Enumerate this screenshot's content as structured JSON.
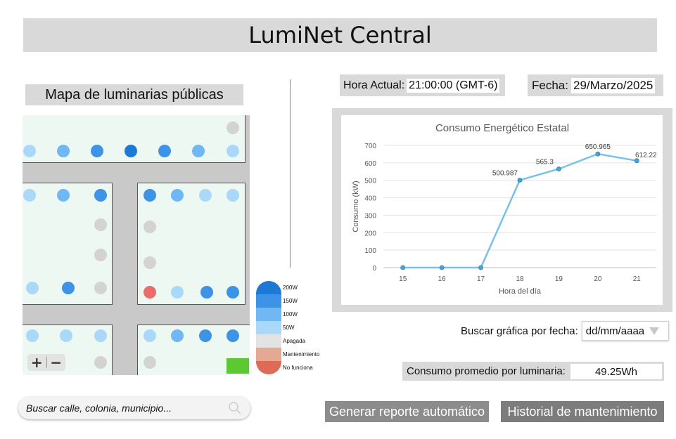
{
  "app": {
    "title": "LumiNet Central"
  },
  "map": {
    "title": "Mapa de luminarias públicas",
    "zoom_in": "+",
    "zoom_out": "−",
    "search_placeholder": "Buscar calle, colonia, municipio..."
  },
  "legend": [
    {
      "label": "200W",
      "color": "#1c79d6"
    },
    {
      "label": "150W",
      "color": "#3d93e6"
    },
    {
      "label": "100W",
      "color": "#70b8f3"
    },
    {
      "label": "50W",
      "color": "#a9d8f8"
    },
    {
      "label": "Apagada",
      "color": "#e3e3e3"
    },
    {
      "label": "Mantenimiento",
      "color": "#e4a893"
    },
    {
      "label": "No funciona",
      "color": "#de6b55"
    }
  ],
  "status": {
    "time_label": "Hora Actual:",
    "time_value": "21:00:00 (GMT-6)",
    "date_label": "Fecha:",
    "date_value": "29/Marzo/2025"
  },
  "chart_data": {
    "type": "line",
    "title": "Consumo Energético Estatal",
    "xlabel": "Hora del día",
    "ylabel": "Consumo (kW)",
    "x": [
      15,
      16,
      17,
      18,
      19,
      20,
      21
    ],
    "values": [
      0,
      0,
      0,
      500.987,
      565.3,
      650.965,
      612.22
    ],
    "data_labels": [
      "",
      "",
      "",
      "500.987",
      "565.3",
      "650.965",
      "612.22"
    ],
    "ylim": [
      0,
      700
    ],
    "yticks": [
      0,
      100,
      200,
      300,
      400,
      500,
      600,
      700
    ],
    "grid": true,
    "color": "#7cc0e6"
  },
  "controls": {
    "search_by_date_label": "Buscar gráfica por fecha:",
    "date_placeholder": "dd/mm/aaaa",
    "avg_label": "Consumo promedio por luminaria:",
    "avg_value": "49.25Wh",
    "report_button": "Generar reporte automático",
    "history_button": "Historial de mantenimiento"
  }
}
